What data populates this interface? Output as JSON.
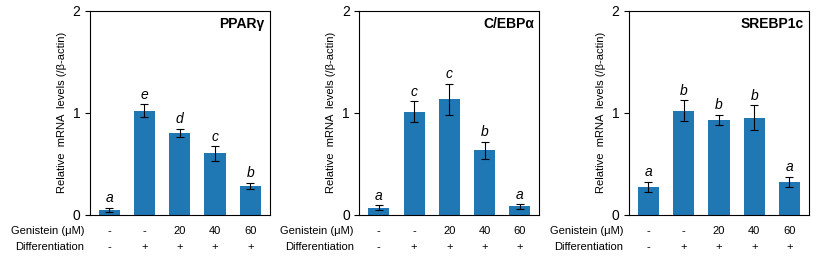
{
  "chart_data": [
    {
      "type": "bar",
      "title": "PPARγ",
      "y_label": "Relative  mRNA  levels (/β-actin)",
      "categories": [
        null,
        null,
        null,
        null,
        null
      ],
      "category_rows": [
        {
          "label": "Genistein (μM)",
          "values": [
            "-",
            "-",
            "20",
            "40",
            "60"
          ]
        },
        {
          "label": "Differentiation",
          "values": [
            "-",
            "+",
            "+",
            "+",
            "+"
          ]
        }
      ],
      "values": [
        0.05,
        1.02,
        0.8,
        0.6,
        0.28
      ],
      "errors": [
        0.02,
        0.06,
        0.04,
        0.07,
        0.03
      ],
      "bar_letters": [
        "a",
        "e",
        "d",
        "c",
        "b"
      ],
      "ylim": [
        0,
        2.0
      ],
      "yticks": [
        0,
        1,
        2
      ]
    },
    {
      "type": "bar",
      "title": "C/EBPα",
      "y_label": "Relative  mRNA  levels (/β-actin)",
      "categories": [
        null,
        null,
        null,
        null,
        null
      ],
      "category_rows": [
        {
          "label": "Genistein (μM)",
          "values": [
            "-",
            "-",
            "20",
            "40",
            "60"
          ]
        },
        {
          "label": "Differentiation",
          "values": [
            "-",
            "+",
            "+",
            "+",
            "+"
          ]
        }
      ],
      "values": [
        0.07,
        1.01,
        1.13,
        0.63,
        0.08
      ],
      "errors": [
        0.02,
        0.1,
        0.15,
        0.08,
        0.02
      ],
      "bar_letters": [
        "a",
        "c",
        "c",
        "b",
        "a"
      ],
      "ylim": [
        0,
        2.0
      ],
      "yticks": [
        0,
        1,
        2
      ]
    },
    {
      "type": "bar",
      "title": "SREBP1c",
      "y_label": "Relative  mRNA  levels (/β-actin)",
      "categories": [
        null,
        null,
        null,
        null,
        null
      ],
      "category_rows": [
        {
          "label": "Genistein (μM)",
          "values": [
            "-",
            "-",
            "20",
            "40",
            "60"
          ]
        },
        {
          "label": "Differentiation",
          "values": [
            "-",
            "+",
            "+",
            "+",
            "+"
          ]
        }
      ],
      "values": [
        0.27,
        1.02,
        0.93,
        0.95,
        0.32
      ],
      "errors": [
        0.05,
        0.1,
        0.05,
        0.12,
        0.05
      ],
      "bar_letters": [
        "a",
        "b",
        "b",
        "b",
        "a"
      ],
      "ylim": [
        0,
        2.0
      ],
      "yticks": [
        0,
        1,
        2
      ]
    }
  ]
}
